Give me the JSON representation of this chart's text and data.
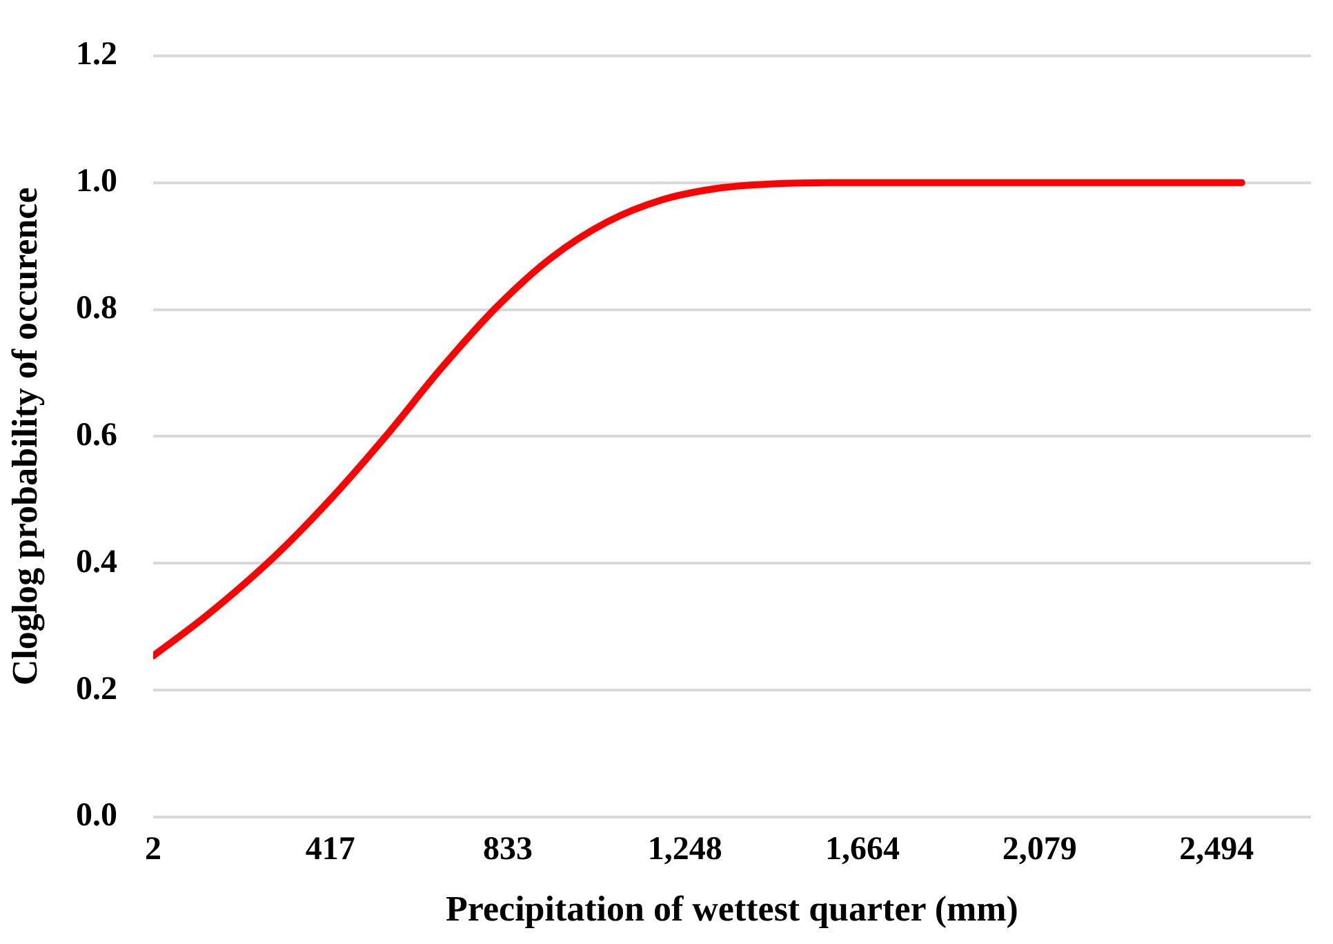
{
  "chart_data": {
    "type": "line",
    "xlabel": "Precipitation of wettest quarter (mm)",
    "ylabel": "Cloglog probability of occurence",
    "x": [
      2,
      128,
      290,
      419,
      548,
      678,
      807,
      936,
      1066,
      1195,
      1324,
      1454,
      1583,
      2553
    ],
    "series": [
      {
        "color": "#ff0000",
        "values": [
          0.254,
          0.318,
          0.413,
          0.502,
          0.601,
          0.708,
          0.804,
          0.882,
          0.938,
          0.973,
          0.991,
          0.998,
          1.0,
          1.0
        ]
      }
    ],
    "xlim": [
      2,
      2715
    ],
    "xticks": [
      2,
      417,
      833,
      {
        "value": 1248,
        "label": "1,248"
      },
      {
        "value": 1664,
        "label": "1,664"
      },
      {
        "value": 2079,
        "label": "2,079"
      },
      {
        "value": 2494,
        "label": "2,494"
      }
    ],
    "ylim": [
      0,
      1.2
    ],
    "yticks": [
      {
        "value": 0,
        "label": "0.0"
      },
      {
        "value": 0.2,
        "label": "0.2"
      },
      {
        "value": 0.4,
        "label": "0.4"
      },
      {
        "value": 0.6,
        "label": "0.6"
      },
      {
        "value": 0.8,
        "label": "0.8"
      },
      {
        "value": 1,
        "label": "1.0"
      },
      {
        "value": 1.2,
        "label": "1.2"
      }
    ],
    "grid": "y",
    "marker": "none",
    "line_style": "solid",
    "legend": false
  }
}
